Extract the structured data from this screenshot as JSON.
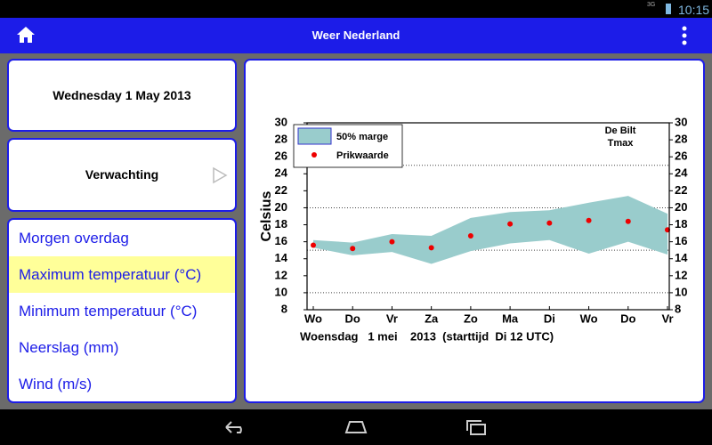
{
  "status_bar": {
    "network": "3G",
    "time": "10:15"
  },
  "app_bar": {
    "title": "Weer Nederland"
  },
  "date_card": {
    "text": "Wednesday 1 May 2013"
  },
  "forecast_card": {
    "text": "Verwachting"
  },
  "menu": {
    "items": [
      "Morgen overdag",
      "Maximum temperatuur (°C)",
      "Minimum temperatuur (°C)",
      "Neerslag (mm)",
      "Wind (m/s)"
    ],
    "selected": 1
  },
  "chart_data": {
    "type": "band",
    "ylabel": "Celsius",
    "annotation": [
      "De Bilt",
      "Tmax"
    ],
    "xcaption": "Woensdag   1 mei    2013  (starttijd  Di 12 UTC)",
    "categories": [
      "Wo",
      "Do",
      "Vr",
      "Za",
      "Zo",
      "Ma",
      "Di",
      "Wo",
      "Do",
      "Vr"
    ],
    "ylim": [
      8,
      30
    ],
    "yticks": [
      8,
      10,
      12,
      14,
      16,
      18,
      20,
      22,
      24,
      26,
      28,
      30
    ],
    "y2lim": [
      8,
      30
    ],
    "y2ticks": [
      8,
      10,
      12,
      14,
      16,
      18,
      20,
      22,
      24,
      26,
      28,
      30
    ],
    "gridlines": [
      10,
      15,
      20,
      25
    ],
    "band": {
      "name": "50% marge",
      "color": "#99cccc",
      "high": [
        16.2,
        15.9,
        16.9,
        16.7,
        18.8,
        19.5,
        19.7,
        20.6,
        21.4,
        19.3
      ],
      "low": [
        15.3,
        14.4,
        14.8,
        13.4,
        14.9,
        15.8,
        16.2,
        14.6,
        16.0,
        14.5
      ]
    },
    "points": {
      "name": "Prikwaarde",
      "color": "#ee0000",
      "values": [
        15.6,
        15.2,
        16.0,
        15.3,
        16.7,
        18.1,
        18.2,
        18.5,
        18.4,
        17.4
      ]
    }
  }
}
